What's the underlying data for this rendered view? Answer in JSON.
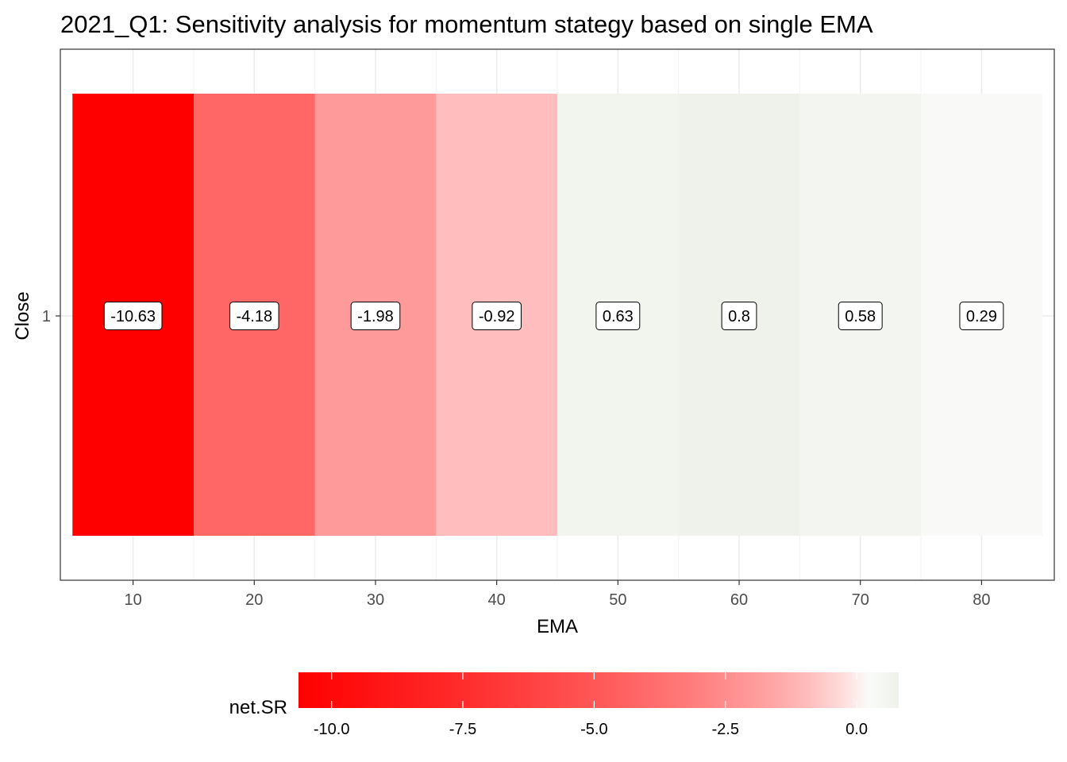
{
  "chart_data": {
    "type": "heatmap",
    "title": "2021_Q1: Sensitivity analysis for momentum stategy based on single EMA",
    "xlabel": "EMA",
    "ylabel": "Close",
    "x": [
      10,
      20,
      30,
      40,
      50,
      60,
      70,
      80
    ],
    "x_ticks": [
      "10",
      "20",
      "30",
      "40",
      "50",
      "60",
      "70",
      "80"
    ],
    "xlim": [
      4,
      86
    ],
    "y": [
      1
    ],
    "y_ticks": [
      "1"
    ],
    "values": [
      -10.63,
      -4.18,
      -1.98,
      -0.92,
      0.63,
      0.8,
      0.58,
      0.29
    ],
    "labels": [
      "-10.63",
      "-4.18",
      "-1.98",
      "-0.92",
      "0.63",
      "0.8",
      "0.58",
      "0.29"
    ],
    "legend": {
      "title": "net.SR",
      "position": "bottom",
      "range": [
        -10.63,
        0.8
      ],
      "ticks": [
        -10.0,
        -7.5,
        -5.0,
        -2.5,
        0.0
      ],
      "tick_labels": [
        "-10.0",
        "-7.5",
        "-5.0",
        "-2.5",
        "0.0"
      ],
      "low_color": "#ff0000",
      "mid_color": "#ffffff",
      "high_color": "#eef2ea",
      "midpoint": 0
    },
    "grid": true
  }
}
